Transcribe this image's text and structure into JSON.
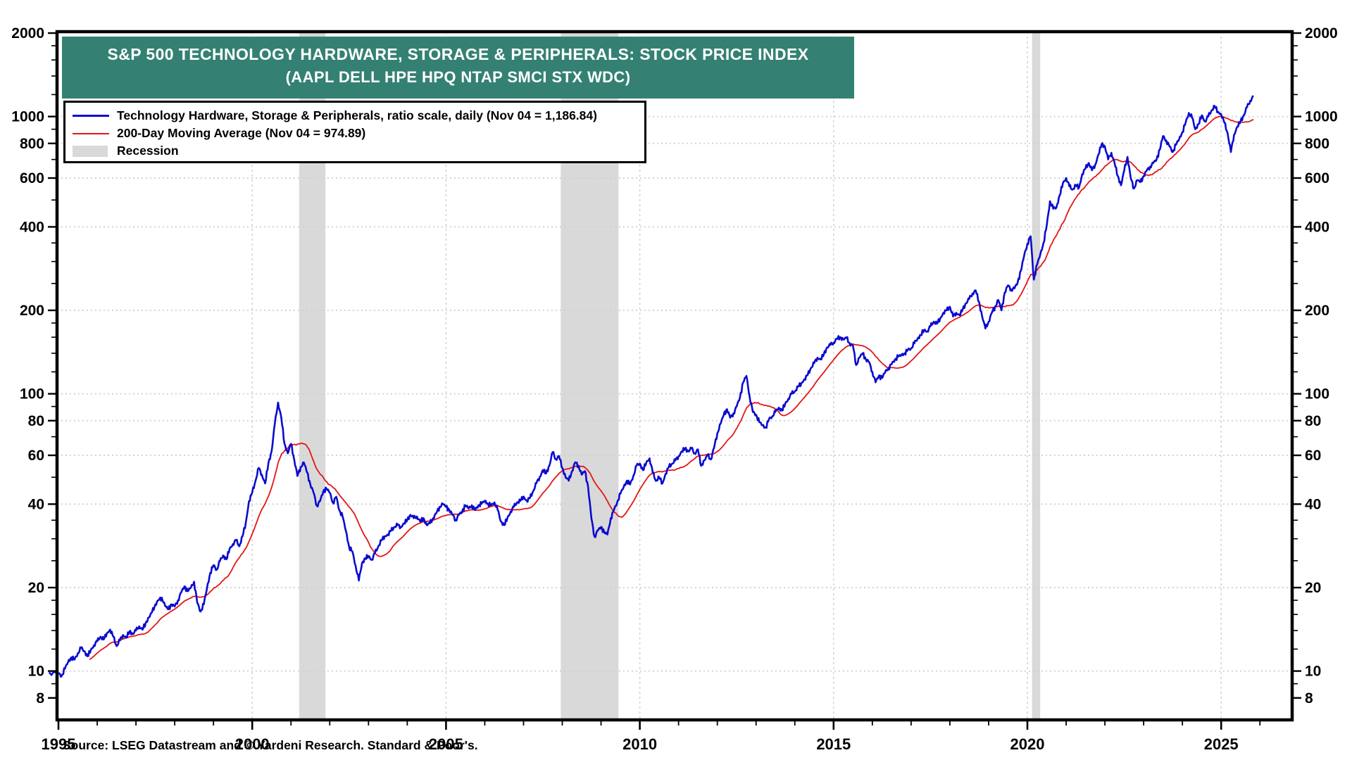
{
  "title": {
    "line1": "S&P 500 TECHNOLOGY HARDWARE, STORAGE & PERIPHERALS: STOCK PRICE INDEX",
    "line2": "(AAPL DELL HPE HPQ NTAP SMCI STX WDC)"
  },
  "legend": {
    "items": [
      {
        "label": "Technology Hardware, Storage & Peripherals, ratio scale, daily (Nov 04 = 1,186.84)",
        "marker": "blue-line"
      },
      {
        "label": "200-Day Moving Average (Nov 04 = 974.89)",
        "marker": "red-line"
      },
      {
        "label": "Recession",
        "marker": "gray-swatch"
      }
    ]
  },
  "source": "Source: LSEG Datastream and © Yardeni Research. Standard & Poor's.",
  "colors": {
    "banner_teal": "#348173",
    "series_blue": "#0b0bcf",
    "series_red": "#e31616",
    "recession_gray": "#d9d9d9",
    "grid_gray": "#cfcfcf"
  },
  "chart_data": {
    "type": "line",
    "title": "S&P 500 Technology Hardware, Storage & Peripherals: Stock Price Index",
    "y_scale": "log",
    "x_axis": {
      "range": [
        1994.73,
        2026.8
      ],
      "major_ticks": [
        1995,
        2000,
        2005,
        2010,
        2015,
        2020,
        2025
      ],
      "minor_tick_years": [
        1996,
        1997,
        1998,
        1999,
        2001,
        2002,
        2003,
        2004,
        2006,
        2007,
        2008,
        2009,
        2011,
        2012,
        2013,
        2014,
        2016,
        2017,
        2018,
        2019,
        2021,
        2022,
        2023,
        2024,
        2026
      ]
    },
    "y_axis": {
      "range": [
        6.5,
        2000
      ],
      "tick_labels": [
        2000,
        1000,
        800,
        600,
        400,
        200,
        100,
        80,
        60,
        40,
        20,
        10,
        8
      ],
      "minor_ticks": [
        9,
        12,
        14,
        16,
        18,
        25,
        30,
        35,
        50,
        70,
        90,
        120,
        140,
        160,
        180,
        250,
        300,
        350,
        500,
        700,
        900,
        1200,
        1400,
        1600,
        1800
      ]
    },
    "grid": {
      "h_lines": [
        1000,
        800,
        600,
        400,
        200,
        100,
        80,
        60,
        40,
        20,
        10
      ],
      "v_lines": [
        2000,
        2005,
        2010,
        2015,
        2020,
        2025
      ]
    },
    "recession_bands": [
      {
        "start": 2001.21,
        "end": 2001.89
      },
      {
        "start": 2007.96,
        "end": 2009.45
      },
      {
        "start": 2020.12,
        "end": 2020.33
      }
    ],
    "series": [
      {
        "name": "Technology Hardware, Storage & Peripherals",
        "frequency": "daily",
        "latest_date": "Nov 04",
        "latest_value": 1186.84,
        "start_point": [
          1994.76,
          9.9
        ],
        "monthly": {
          "1995": [
            9.8,
            9.6,
            10.2,
            10.8,
            11.2,
            11.0,
            11.6,
            12.1,
            11.8,
            11.3,
            11.9,
            12.4
          ],
          "1996": [
            12.8,
            13.3,
            13.0,
            13.7,
            14.1,
            13.3,
            12.3,
            12.9,
            13.5,
            13.2,
            13.9,
            13.6
          ],
          "1997": [
            14.0,
            14.5,
            14.1,
            14.9,
            15.6,
            16.3,
            17.4,
            18.0,
            18.4,
            17.2,
            16.7,
            17.4
          ],
          "1998": [
            17.1,
            18.0,
            19.2,
            20.2,
            19.4,
            20.0,
            21.0,
            17.6,
            16.4,
            17.4,
            19.9,
            22.6
          ],
          "1999": [
            24.1,
            23.2,
            24.9,
            26.1,
            25.3,
            27.6,
            28.7,
            29.6,
            28.2,
            30.6,
            34.2,
            41.0
          ],
          "2000": [
            44.0,
            48.5,
            54.0,
            51.0,
            47.5,
            56.0,
            62.0,
            78.0,
            93.0,
            82.0,
            66.0,
            61.0
          ],
          "2001": [
            66.0,
            58.0,
            50.5,
            54.5,
            56.5,
            52.0,
            47.0,
            44.0,
            39.5,
            41.0,
            44.5,
            45.5
          ],
          "2002": [
            44.0,
            40.5,
            42.5,
            38.0,
            36.0,
            32.0,
            28.0,
            27.0,
            24.0,
            21.2,
            24.5,
            25.5
          ],
          "2003": [
            26.0,
            25.2,
            26.6,
            28.1,
            29.6,
            30.6,
            31.1,
            32.1,
            33.1,
            33.6,
            33.1,
            34.1
          ],
          "2004": [
            35.1,
            36.6,
            35.6,
            36.1,
            34.6,
            35.6,
            33.6,
            34.1,
            35.6,
            37.1,
            39.1,
            40.1
          ],
          "2005": [
            39.1,
            38.1,
            36.6,
            35.1,
            36.6,
            37.6,
            39.6,
            38.6,
            39.6,
            38.1,
            39.6,
            40.1
          ],
          "2006": [
            41.1,
            40.1,
            39.6,
            40.6,
            38.1,
            34.6,
            33.6,
            35.6,
            37.6,
            39.1,
            40.6,
            41.1
          ],
          "2007": [
            42.6,
            41.1,
            42.1,
            44.6,
            47.6,
            50.1,
            53.1,
            51.6,
            55.1,
            61.6,
            58.1,
            59.6
          ],
          "2008": [
            54.1,
            50.1,
            48.6,
            52.6,
            56.6,
            55.1,
            51.1,
            52.6,
            46.1,
            35.6,
            30.5,
            32.1
          ],
          "2009": [
            33.1,
            31.6,
            31.1,
            35.6,
            38.1,
            40.6,
            43.6,
            46.1,
            48.6,
            47.1,
            50.6,
            55.0
          ],
          "2010": [
            56.0,
            53.0,
            56.5,
            58.5,
            52.0,
            48.5,
            50.0,
            47.5,
            51.5,
            54.5,
            56.0,
            57.5
          ],
          "2011": [
            59.5,
            62.0,
            63.5,
            62.0,
            63.5,
            61.0,
            63.0,
            55.0,
            57.5,
            60.0,
            58.0,
            64.0
          ],
          "2012": [
            72.0,
            78.0,
            84.0,
            88.0,
            82.0,
            85.0,
            90.0,
            97.0,
            110.0,
            116.0,
            98.0,
            86.0
          ],
          "2013": [
            84.0,
            79.0,
            77.0,
            75.5,
            81.0,
            83.0,
            86.0,
            89.0,
            87.0,
            92.0,
            96.0,
            100.0
          ],
          "2014": [
            102,
            106,
            109,
            113,
            117,
            124,
            129,
            135,
            133,
            139,
            147,
            150
          ],
          "2015": [
            153,
            158,
            160,
            157,
            159,
            152,
            149,
            127,
            135,
            140,
            133,
            130
          ],
          "2016": [
            120,
            110,
            116,
            114,
            120,
            124,
            128,
            133,
            136,
            138,
            140,
            144
          ],
          "2017": [
            146,
            152,
            158,
            163,
            170,
            168,
            175,
            182,
            179,
            187,
            196,
            200
          ],
          "2018": [
            206,
            190,
            196,
            192,
            202,
            212,
            220,
            230,
            236,
            215,
            190,
            172
          ],
          "2019": [
            182,
            196,
            206,
            218,
            200,
            232,
            246,
            238,
            240,
            252,
            278,
            315
          ],
          "2020": [
            348,
            370,
            258,
            292,
            318,
            350,
            405,
            495,
            465,
            470,
            520,
            575
          ],
          "2021": [
            600,
            560,
            545,
            565,
            555,
            620,
            650,
            680,
            640,
            670,
            730,
            795
          ],
          "2022": [
            780,
            700,
            740,
            680,
            610,
            565,
            640,
            715,
            600,
            550,
            590,
            580
          ],
          "2023": [
            610,
            640,
            660,
            680,
            700,
            760,
            850,
            820,
            780,
            745,
            790,
            830
          ],
          "2024": [
            880,
            950,
            1030,
            990,
            900,
            940,
            1010,
            960,
            1000,
            1050,
            1090,
            1040
          ],
          "2025": [
            1020,
            950,
            870,
            745,
            860,
            920,
            960,
            1010,
            1080,
            1140,
            1186.84
          ]
        }
      },
      {
        "name": "200-Day Moving Average",
        "latest_date": "Nov 04",
        "latest_value": 974.89,
        "derived": "trailing 200-day moving average of the daily series",
        "window_years": 0.8,
        "draw_from": 1995.8
      }
    ]
  }
}
